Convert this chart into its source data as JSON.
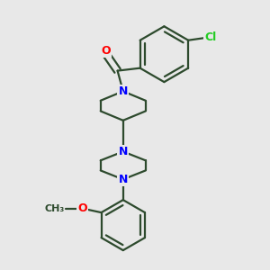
{
  "background_color": "#e8e8e8",
  "bond_color": "#2d4a2d",
  "N_color": "#0000ff",
  "O_color": "#ff0000",
  "Cl_color": "#22cc22",
  "line_width": 1.6,
  "figsize": [
    3.0,
    3.0
  ],
  "dpi": 100,
  "xlim": [
    0,
    10
  ],
  "ylim": [
    0,
    10
  ]
}
